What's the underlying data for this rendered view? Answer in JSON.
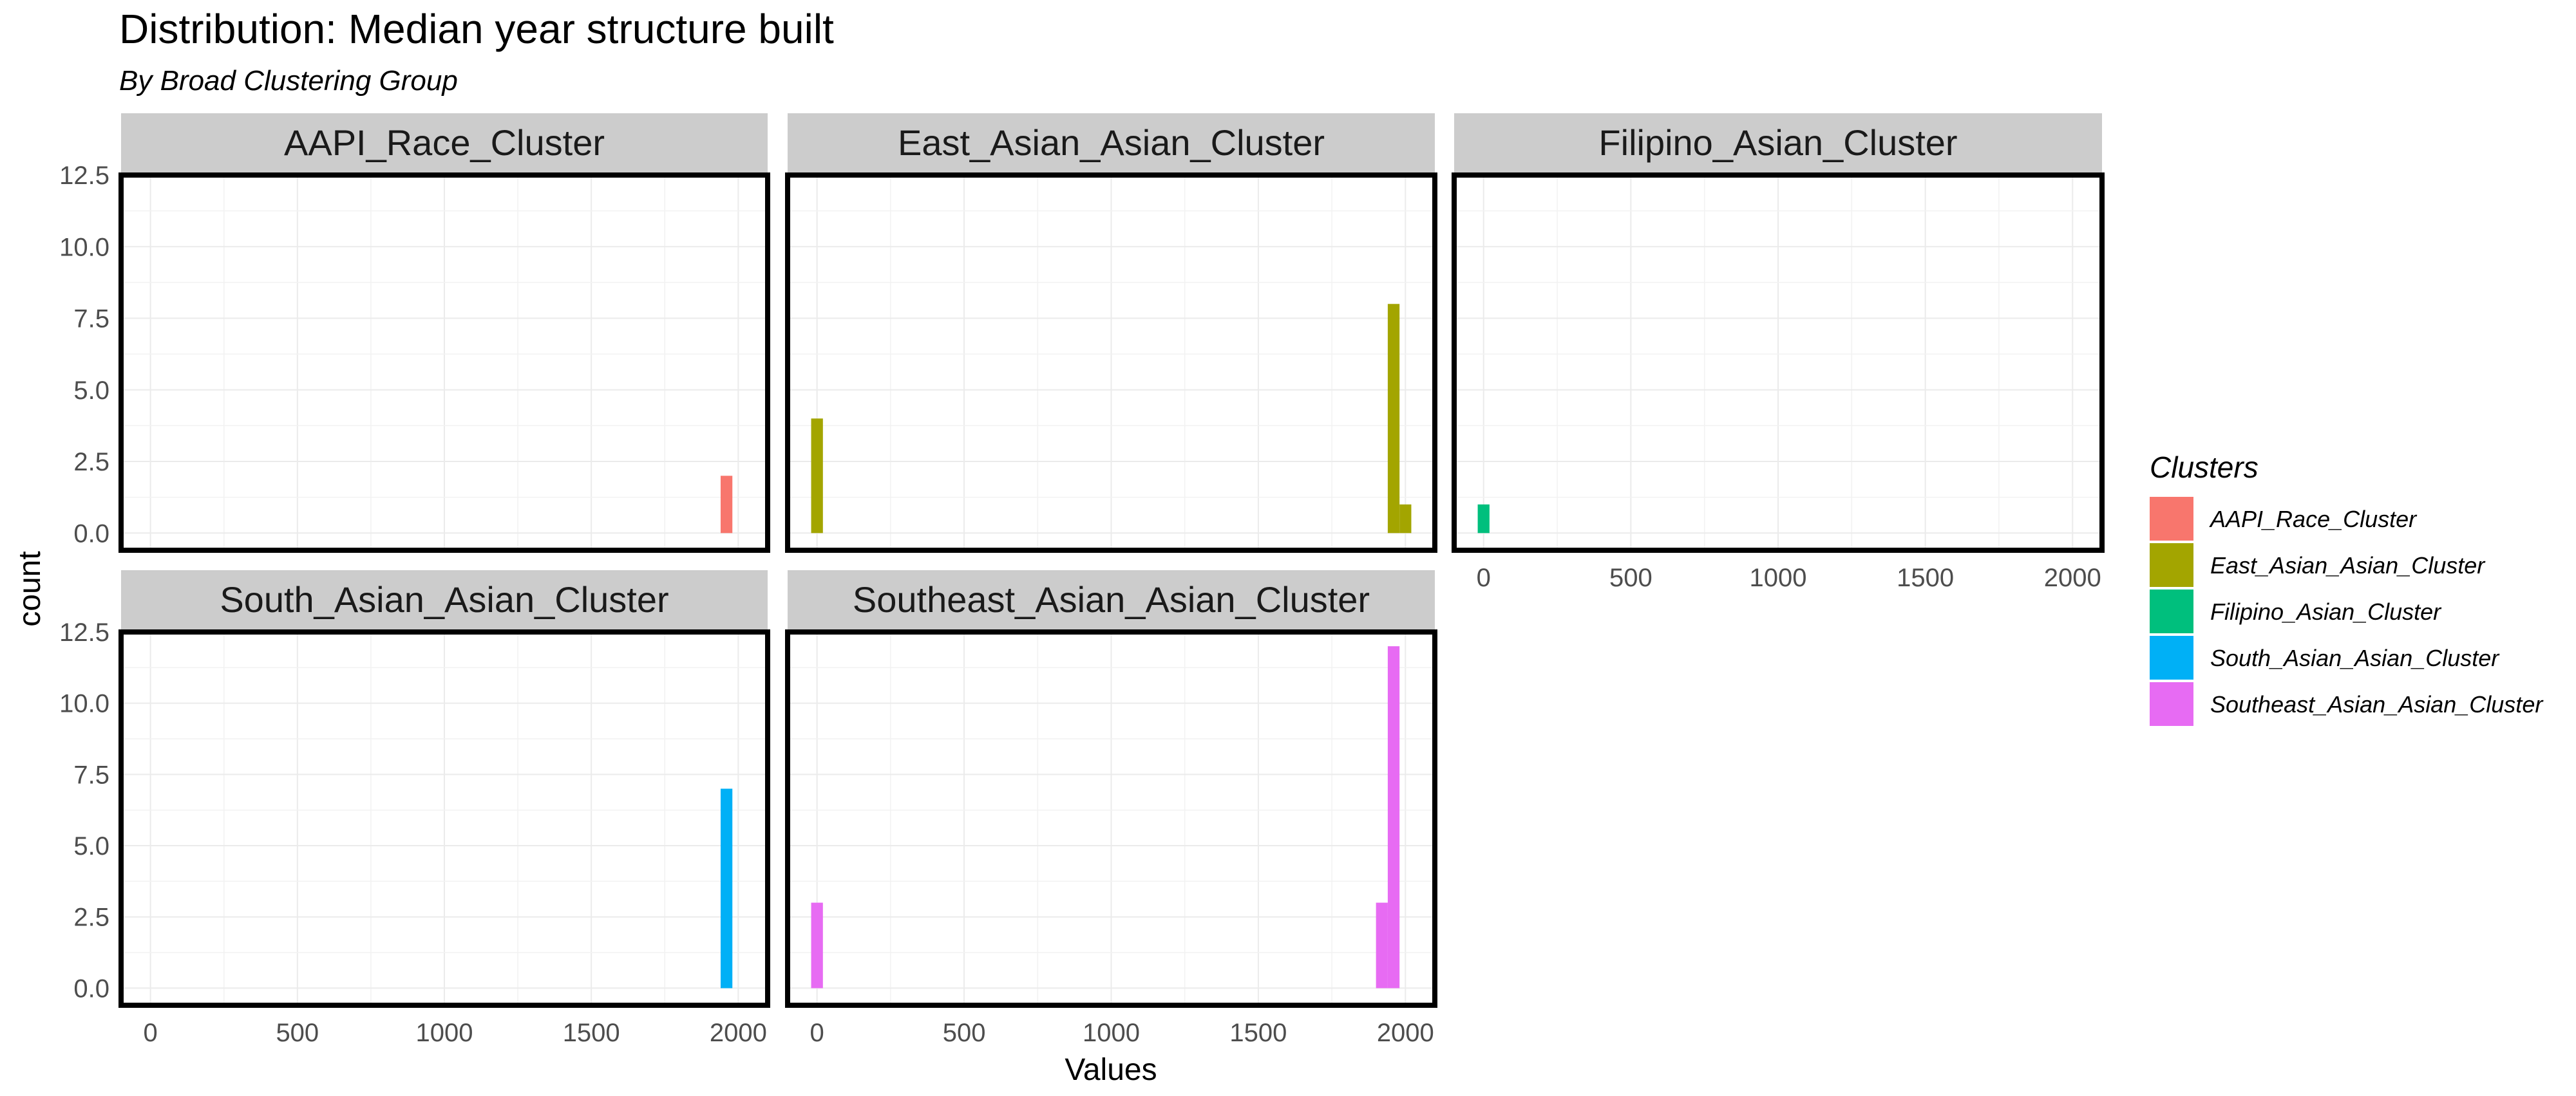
{
  "chart_data": {
    "type": "bar",
    "title": "Distribution: Median year structure built",
    "subtitle": "By Broad Clustering Group",
    "xlabel": "Values",
    "ylabel": "count",
    "xlim": [
      -100,
      2100
    ],
    "ylim": [
      -0.6,
      12.5
    ],
    "x_ticks": [
      0,
      500,
      1000,
      1500,
      2000
    ],
    "y_ticks": [
      0.0,
      2.5,
      5.0,
      7.5,
      10.0,
      12.5
    ],
    "bin_width": 40,
    "grid": true,
    "legend": {
      "title": "Clusters",
      "position": "right",
      "entries": [
        {
          "name": "AAPI_Race_Cluster",
          "color": "#F8766D"
        },
        {
          "name": "East_Asian_Asian_Cluster",
          "color": "#A3A500"
        },
        {
          "name": "Filipino_Asian_Cluster",
          "color": "#00BF7D"
        },
        {
          "name": "South_Asian_Asian_Cluster",
          "color": "#00B0F6"
        },
        {
          "name": "Southeast_Asian_Asian_Cluster",
          "color": "#E76BF3"
        }
      ]
    },
    "facets": [
      {
        "name": "AAPI_Race_Cluster",
        "color": "#F8766D",
        "bins": [
          {
            "x": 1960,
            "count": 2
          }
        ]
      },
      {
        "name": "East_Asian_Asian_Cluster",
        "color": "#A3A500",
        "bins": [
          {
            "x": 0,
            "count": 4
          },
          {
            "x": 1960,
            "count": 8
          },
          {
            "x": 2000,
            "count": 1
          }
        ]
      },
      {
        "name": "Filipino_Asian_Cluster",
        "color": "#00BF7D",
        "bins": [
          {
            "x": 0,
            "count": 1
          }
        ]
      },
      {
        "name": "South_Asian_Asian_Cluster",
        "color": "#00B0F6",
        "bins": [
          {
            "x": 1960,
            "count": 7
          }
        ]
      },
      {
        "name": "Southeast_Asian_Asian_Cluster",
        "color": "#E76BF3",
        "bins": [
          {
            "x": 0,
            "count": 3
          },
          {
            "x": 1920,
            "count": 3
          },
          {
            "x": 1960,
            "count": 12
          }
        ]
      }
    ]
  }
}
